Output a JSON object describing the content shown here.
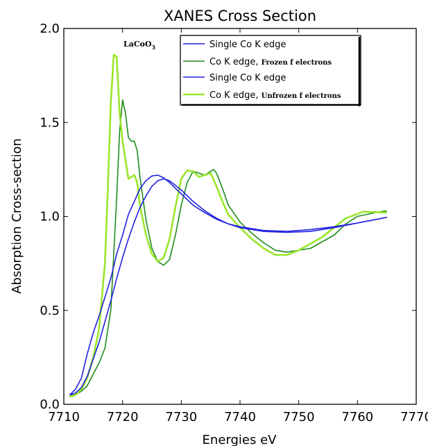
{
  "chart_data": {
    "type": "line",
    "title": "XANES Cross Section",
    "xlabel": "Energies eV",
    "ylabel": "Absorption Cross-section",
    "xlim": [
      7710,
      7770
    ],
    "ylim": [
      0.0,
      2.0
    ],
    "x_ticks": [
      "7710",
      "7720",
      "7730",
      "7740",
      "7750",
      "7760",
      "7770"
    ],
    "y_ticks": [
      "0.0",
      "0.5",
      "1.0",
      "1.5",
      "2.0"
    ],
    "grid": false,
    "legend_position": "top-right",
    "annotation": {
      "base": "LaCoO",
      "subscript": "3"
    },
    "series": [
      {
        "name": "Single Co K edge",
        "color": "#2020e0",
        "points": [
          [
            7711,
            0.05
          ],
          [
            7712,
            0.08
          ],
          [
            7713,
            0.14
          ],
          [
            7714,
            0.27
          ],
          [
            7715,
            0.38
          ],
          [
            7716,
            0.47
          ],
          [
            7717,
            0.57
          ],
          [
            7718,
            0.67
          ],
          [
            7719,
            0.8
          ],
          [
            7720,
            0.9
          ],
          [
            7721,
            1.01
          ],
          [
            7722,
            1.08
          ],
          [
            7723,
            1.15
          ],
          [
            7724,
            1.19
          ],
          [
            7725,
            1.215
          ],
          [
            7726,
            1.22
          ],
          [
            7727,
            1.205
          ],
          [
            7728,
            1.18
          ],
          [
            7730,
            1.12
          ],
          [
            7732,
            1.06
          ],
          [
            7734,
            1.02
          ],
          [
            7736,
            0.985
          ],
          [
            7738,
            0.96
          ],
          [
            7740,
            0.945
          ],
          [
            7744,
            0.925
          ],
          [
            7748,
            0.92
          ],
          [
            7752,
            0.93
          ],
          [
            7756,
            0.945
          ],
          [
            7760,
            0.965
          ],
          [
            7765,
            0.995
          ]
        ]
      },
      {
        "name": "Co K edge, Frozen f electrons",
        "color": "#1e8c1e",
        "points": [
          [
            7711,
            0.05
          ],
          [
            7712,
            0.05
          ],
          [
            7713,
            0.07
          ],
          [
            7714,
            0.1
          ],
          [
            7715,
            0.16
          ],
          [
            7716,
            0.22
          ],
          [
            7717,
            0.3
          ],
          [
            7718,
            0.5
          ],
          [
            7718.5,
            0.8
          ],
          [
            7719,
            1.1
          ],
          [
            7719.5,
            1.45
          ],
          [
            7720,
            1.62
          ],
          [
            7720.5,
            1.55
          ],
          [
            7721,
            1.42
          ],
          [
            7721.5,
            1.4
          ],
          [
            7722,
            1.4
          ],
          [
            7722.5,
            1.35
          ],
          [
            7723,
            1.2
          ],
          [
            7724,
            0.98
          ],
          [
            7725,
            0.83
          ],
          [
            7726,
            0.76
          ],
          [
            7727,
            0.74
          ],
          [
            7728,
            0.77
          ],
          [
            7729,
            0.9
          ],
          [
            7730,
            1.06
          ],
          [
            7731,
            1.18
          ],
          [
            7732,
            1.24
          ],
          [
            7733,
            1.23
          ],
          [
            7734,
            1.22
          ],
          [
            7735,
            1.24
          ],
          [
            7735.5,
            1.25
          ],
          [
            7736,
            1.23
          ],
          [
            7737,
            1.15
          ],
          [
            7738,
            1.06
          ],
          [
            7740,
            0.97
          ],
          [
            7742,
            0.91
          ],
          [
            7744,
            0.86
          ],
          [
            7746,
            0.82
          ],
          [
            7748,
            0.81
          ],
          [
            7752,
            0.83
          ],
          [
            7756,
            0.9
          ],
          [
            7758,
            0.96
          ],
          [
            7760,
            1.0
          ],
          [
            7763,
            1.02
          ],
          [
            7765,
            1.03
          ]
        ]
      },
      {
        "name": "Single Co K edge",
        "color": "#2020e0",
        "points": [
          [
            7711,
            0.05
          ],
          [
            7712,
            0.06
          ],
          [
            7713,
            0.09
          ],
          [
            7714,
            0.15
          ],
          [
            7715,
            0.24
          ],
          [
            7716,
            0.33
          ],
          [
            7717,
            0.44
          ],
          [
            7718,
            0.55
          ],
          [
            7719,
            0.67
          ],
          [
            7720,
            0.78
          ],
          [
            7721,
            0.88
          ],
          [
            7722,
            0.97
          ],
          [
            7723,
            1.05
          ],
          [
            7724,
            1.11
          ],
          [
            7725,
            1.16
          ],
          [
            7726,
            1.19
          ],
          [
            7727,
            1.2
          ],
          [
            7728,
            1.19
          ],
          [
            7730,
            1.14
          ],
          [
            7732,
            1.08
          ],
          [
            7734,
            1.03
          ],
          [
            7736,
            0.99
          ],
          [
            7738,
            0.96
          ],
          [
            7740,
            0.94
          ],
          [
            7744,
            0.92
          ],
          [
            7748,
            0.915
          ],
          [
            7752,
            0.92
          ],
          [
            7756,
            0.94
          ],
          [
            7760,
            0.965
          ],
          [
            7765,
            0.995
          ]
        ]
      },
      {
        "name": "Co K edge, Unfrozen f electrons",
        "color": "#99e62a",
        "points": [
          [
            7711,
            0.04
          ],
          [
            7712,
            0.05
          ],
          [
            7713,
            0.08
          ],
          [
            7714,
            0.14
          ],
          [
            7715,
            0.25
          ],
          [
            7716,
            0.4
          ],
          [
            7717,
            0.75
          ],
          [
            7717.5,
            1.15
          ],
          [
            7718,
            1.6
          ],
          [
            7718.5,
            1.86
          ],
          [
            7719,
            1.85
          ],
          [
            7719.5,
            1.55
          ],
          [
            7720,
            1.4
          ],
          [
            7720.5,
            1.3
          ],
          [
            7721,
            1.2
          ],
          [
            7722,
            1.22
          ],
          [
            7722.5,
            1.18
          ],
          [
            7723,
            1.05
          ],
          [
            7724,
            0.9
          ],
          [
            7725,
            0.8
          ],
          [
            7726,
            0.76
          ],
          [
            7727,
            0.78
          ],
          [
            7728,
            0.88
          ],
          [
            7729,
            1.05
          ],
          [
            7730,
            1.2
          ],
          [
            7731,
            1.245
          ],
          [
            7732,
            1.24
          ],
          [
            7733,
            1.21
          ],
          [
            7734,
            1.22
          ],
          [
            7735,
            1.23
          ],
          [
            7736,
            1.16
          ],
          [
            7737,
            1.08
          ],
          [
            7738,
            1.01
          ],
          [
            7740,
            0.94
          ],
          [
            7742,
            0.88
          ],
          [
            7744,
            0.83
          ],
          [
            7746,
            0.795
          ],
          [
            7748,
            0.795
          ],
          [
            7750,
            0.82
          ],
          [
            7754,
            0.89
          ],
          [
            7758,
            0.99
          ],
          [
            7761,
            1.025
          ],
          [
            7765,
            1.02
          ]
        ]
      }
    ],
    "legend": [
      {
        "main": "Single Co K edge",
        "small": ""
      },
      {
        "main": "Co K edge, ",
        "small": "Frozen f electrons"
      },
      {
        "main": "Single Co K edge",
        "small": ""
      },
      {
        "main": "Co K edge, ",
        "small": "Unfrozen f electrons"
      }
    ]
  }
}
